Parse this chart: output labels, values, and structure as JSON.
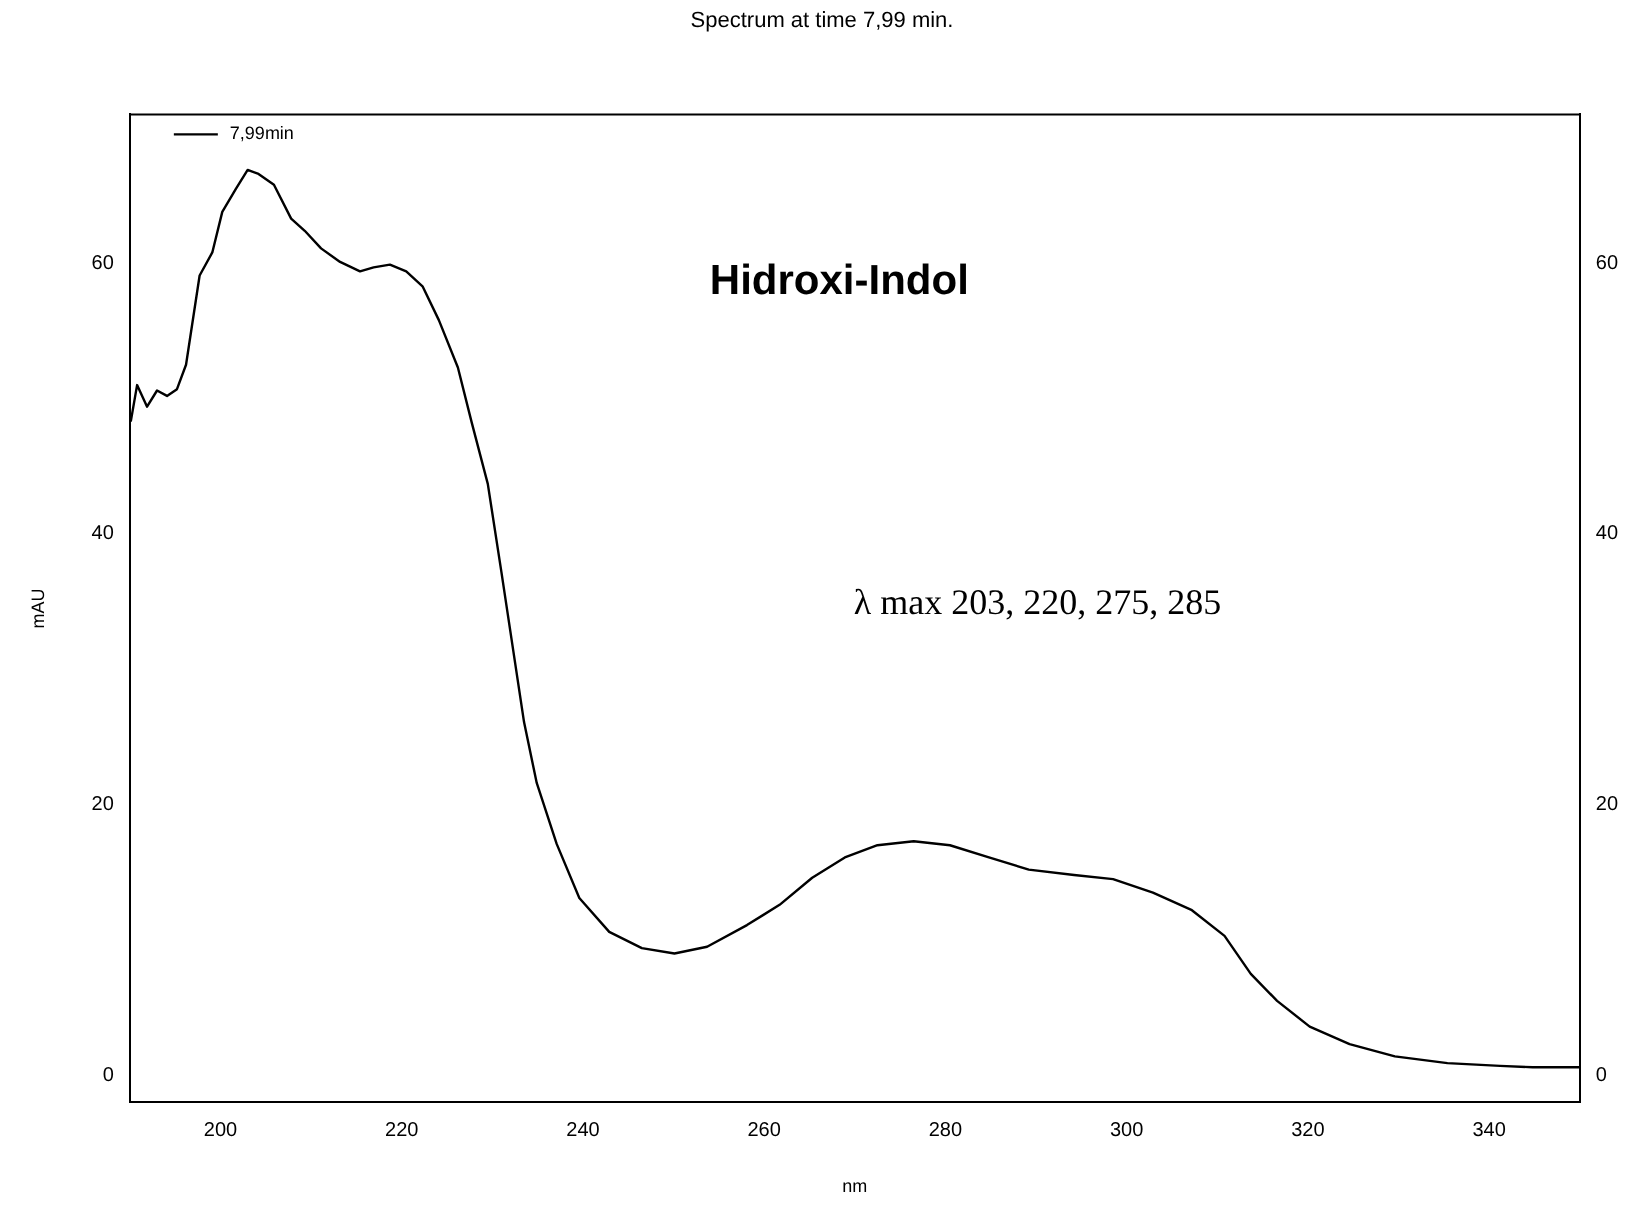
{
  "chart_data": {
    "type": "line",
    "title": "Spectrum at time 7,99 min.",
    "xlabel": "nm",
    "ylabel": "mAU",
    "annotations": [
      "Hidroxi-Indol",
      "λ max 203, 220, 275, 285"
    ],
    "x": [
      190.1,
      190.8,
      191.9,
      193.0,
      194.1,
      195.2,
      196.2,
      197.7,
      199.1,
      200.2,
      201.7,
      203.0,
      204.2,
      205.9,
      207.8,
      209.3,
      211.1,
      213.2,
      215.4,
      216.9,
      218.7,
      220.5,
      222.3,
      224.1,
      226.2,
      227.7,
      229.5,
      231.0,
      233.5,
      234.9,
      237.1,
      239.6,
      242.9,
      246.5,
      250.1,
      253.7,
      258.1,
      261.7,
      265.3,
      268.9,
      272.5,
      276.5,
      280.5,
      284.8,
      289.2,
      294.2,
      298.5,
      302.9,
      307.2,
      310.8,
      313.7,
      316.6,
      320.2,
      324.6,
      329.6,
      335.4,
      341.2,
      344.8,
      350.0
    ],
    "series": [
      {
        "name": "7,99min",
        "color": "#000000",
        "values": [
          48.3,
          51.0,
          49.4,
          50.6,
          50.2,
          50.7,
          52.5,
          59.1,
          60.8,
          63.8,
          65.5,
          66.9,
          66.6,
          65.8,
          63.3,
          62.4,
          61.1,
          60.1,
          59.4,
          59.7,
          59.9,
          59.4,
          58.3,
          55.8,
          52.3,
          48.3,
          43.7,
          37.2,
          26.1,
          21.6,
          17.1,
          13.1,
          10.6,
          9.4,
          9.0,
          9.5,
          11.1,
          12.6,
          14.6,
          16.1,
          17.0,
          17.3,
          17.0,
          16.1,
          15.2,
          14.8,
          14.5,
          13.5,
          12.2,
          10.3,
          7.5,
          5.5,
          3.6,
          2.3,
          1.4,
          0.9,
          0.7,
          0.6,
          0.6
        ]
      }
    ],
    "xlim": [
      190,
      350
    ],
    "xticks": [
      200,
      220,
      240,
      260,
      280,
      300,
      320,
      340
    ],
    "ylim": [
      -2,
      71
    ],
    "yticks": [
      0,
      20,
      40,
      60
    ],
    "y2lim": [
      -2,
      71
    ],
    "y2ticks": [
      0,
      20,
      40,
      60
    ],
    "legend": "top left",
    "grid": false,
    "marker": "none",
    "line_style": "solid"
  }
}
